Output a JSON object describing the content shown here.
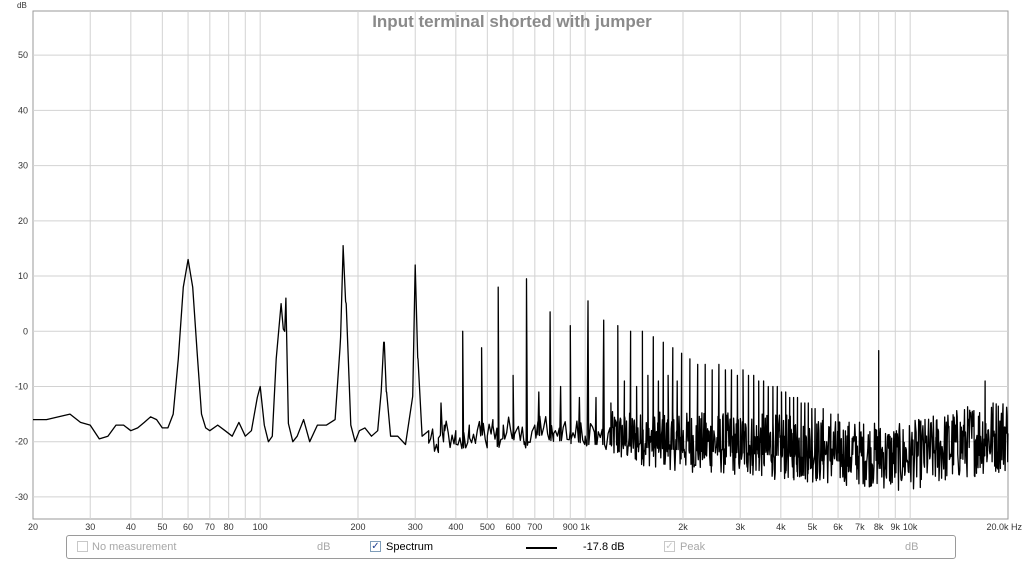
{
  "chart_data": {
    "type": "line",
    "title": "Input terminal shorted with jumper",
    "ylabel": "dB",
    "xlabel": "",
    "x_scale": "log",
    "xlim": [
      20,
      20000
    ],
    "ylim": [
      -34,
      58
    ],
    "x_ticks": [
      {
        "v": 20,
        "label": "20"
      },
      {
        "v": 30,
        "label": "30"
      },
      {
        "v": 40,
        "label": "40"
      },
      {
        "v": 50,
        "label": "50"
      },
      {
        "v": 60,
        "label": "60"
      },
      {
        "v": 70,
        "label": "70"
      },
      {
        "v": 80,
        "label": "80"
      },
      {
        "v": 100,
        "label": "100"
      },
      {
        "v": 200,
        "label": "200"
      },
      {
        "v": 300,
        "label": "300"
      },
      {
        "v": 400,
        "label": "400"
      },
      {
        "v": 500,
        "label": "500"
      },
      {
        "v": 600,
        "label": "600"
      },
      {
        "v": 700,
        "label": "700"
      },
      {
        "v": 900,
        "label": "900"
      },
      {
        "v": 1000,
        "label": "1k"
      },
      {
        "v": 2000,
        "label": "2k"
      },
      {
        "v": 3000,
        "label": "3k"
      },
      {
        "v": 4000,
        "label": "4k"
      },
      {
        "v": 5000,
        "label": "5k"
      },
      {
        "v": 6000,
        "label": "6k"
      },
      {
        "v": 7000,
        "label": "7k"
      },
      {
        "v": 8000,
        "label": "8k"
      },
      {
        "v": 9000,
        "label": "9k"
      },
      {
        "v": 10000,
        "label": "10k"
      },
      {
        "v": 20000,
        "label": "20.0k Hz"
      }
    ],
    "y_ticks": [
      50,
      40,
      30,
      20,
      10,
      0,
      -10,
      -20,
      -30
    ],
    "grid": true,
    "series": [
      {
        "name": "Spectrum",
        "color": "#000000",
        "points": [
          [
            20,
            -16
          ],
          [
            22,
            -16
          ],
          [
            24,
            -15.5
          ],
          [
            26,
            -15
          ],
          [
            28,
            -16.5
          ],
          [
            30,
            -17
          ],
          [
            32,
            -19.5
          ],
          [
            34,
            -19
          ],
          [
            36,
            -17
          ],
          [
            38,
            -17
          ],
          [
            40,
            -18
          ],
          [
            42,
            -17.5
          ],
          [
            44,
            -16.5
          ],
          [
            46,
            -15.5
          ],
          [
            48,
            -16
          ],
          [
            50,
            -17.5
          ],
          [
            52,
            -17.5
          ],
          [
            54,
            -15
          ],
          [
            56,
            -5
          ],
          [
            58,
            8
          ],
          [
            60,
            13
          ],
          [
            62,
            8
          ],
          [
            64,
            -4
          ],
          [
            66,
            -15
          ],
          [
            68,
            -17.5
          ],
          [
            70,
            -18
          ],
          [
            74,
            -17
          ],
          [
            78,
            -18
          ],
          [
            82,
            -19
          ],
          [
            86,
            -16.5
          ],
          [
            90,
            -19
          ],
          [
            94,
            -18
          ],
          [
            98,
            -12
          ],
          [
            100,
            -10
          ],
          [
            103,
            -17
          ],
          [
            106,
            -20
          ],
          [
            109,
            -19
          ],
          [
            112,
            -5
          ],
          [
            116,
            5
          ],
          [
            119,
            0
          ],
          [
            122,
            -15
          ],
          [
            126,
            -20
          ],
          [
            130,
            -19
          ],
          [
            136,
            -16
          ],
          [
            142,
            -20
          ],
          [
            150,
            -17
          ],
          [
            160,
            -17
          ],
          [
            170,
            -16
          ],
          [
            176,
            -3
          ],
          [
            180,
            15
          ],
          [
            184,
            5
          ],
          [
            190,
            -17
          ],
          [
            196,
            -20
          ],
          [
            202,
            -18
          ],
          [
            210,
            -17.5
          ],
          [
            220,
            -19
          ],
          [
            230,
            -18
          ],
          [
            238,
            -6
          ],
          [
            241,
            -2
          ],
          [
            245,
            -11
          ],
          [
            252,
            -19
          ],
          [
            265,
            -19
          ],
          [
            280,
            -20.5
          ],
          [
            295,
            -10
          ],
          [
            300,
            12
          ],
          [
            306,
            -5
          ],
          [
            315,
            -19
          ],
          [
            330,
            -18
          ],
          [
            350,
            -21
          ],
          [
            370,
            -18
          ],
          [
            390,
            -19
          ],
          [
            400,
            -18
          ],
          [
            420,
            -20
          ],
          [
            440,
            -17
          ],
          [
            460,
            -20
          ],
          [
            480,
            -17
          ],
          [
            500,
            -19
          ],
          [
            520,
            -16
          ],
          [
            540,
            -20
          ],
          [
            560,
            -17
          ],
          [
            600,
            -18
          ],
          [
            650,
            -20
          ],
          [
            700,
            -17
          ],
          [
            800,
            -18.5
          ],
          [
            900,
            -18
          ],
          [
            1000,
            -19
          ],
          [
            1200,
            -19
          ],
          [
            1500,
            -19.5
          ],
          [
            2000,
            -20
          ],
          [
            3000,
            -20.5
          ],
          [
            4000,
            -21
          ],
          [
            5000,
            -21.5
          ],
          [
            6000,
            -22
          ],
          [
            7000,
            -22
          ],
          [
            8000,
            -22.5
          ],
          [
            9000,
            -23
          ],
          [
            10000,
            -22.5
          ],
          [
            12000,
            -21.5
          ],
          [
            14000,
            -20.5
          ],
          [
            16000,
            -19.5
          ],
          [
            18000,
            -19
          ],
          [
            20000,
            -18.5
          ]
        ],
        "peaks": [
          [
            120,
            6
          ],
          [
            180,
            15.5
          ],
          [
            240,
            -2
          ],
          [
            300,
            12
          ],
          [
            360,
            -13
          ],
          [
            420,
            0
          ],
          [
            480,
            -3
          ],
          [
            540,
            8
          ],
          [
            600,
            -8
          ],
          [
            660,
            9.5
          ],
          [
            720,
            -11
          ],
          [
            780,
            3.5
          ],
          [
            840,
            -10
          ],
          [
            900,
            1
          ],
          [
            960,
            -12
          ],
          [
            1020,
            5.5
          ],
          [
            1080,
            -12
          ],
          [
            1140,
            2
          ],
          [
            1200,
            -13
          ],
          [
            1260,
            1
          ],
          [
            1320,
            -9
          ],
          [
            1380,
            0
          ],
          [
            1440,
            -10
          ],
          [
            1500,
            0
          ],
          [
            1560,
            -8
          ],
          [
            1620,
            -1
          ],
          [
            1680,
            -9
          ],
          [
            1740,
            -2
          ],
          [
            1800,
            -8
          ],
          [
            1860,
            -3
          ],
          [
            1920,
            -9
          ],
          [
            1980,
            -4
          ],
          [
            2100,
            -5
          ],
          [
            2220,
            -6
          ],
          [
            2340,
            -6
          ],
          [
            2460,
            -7
          ],
          [
            2580,
            -6
          ],
          [
            2700,
            -7
          ],
          [
            2820,
            -7
          ],
          [
            2940,
            -8
          ],
          [
            3060,
            -7
          ],
          [
            3180,
            -8
          ],
          [
            3300,
            -8
          ],
          [
            3420,
            -9
          ],
          [
            3540,
            -9
          ],
          [
            3660,
            -10
          ],
          [
            3780,
            -10
          ],
          [
            3900,
            -10
          ],
          [
            4020,
            -11
          ],
          [
            4140,
            -11
          ],
          [
            4260,
            -12
          ],
          [
            4380,
            -12
          ],
          [
            4500,
            -12
          ],
          [
            4620,
            -13
          ],
          [
            4740,
            -13
          ],
          [
            4860,
            -13
          ],
          [
            4980,
            -14
          ],
          [
            5100,
            -14
          ],
          [
            5400,
            -14
          ],
          [
            5700,
            -15
          ],
          [
            6000,
            -15
          ],
          [
            8000,
            -3.5
          ],
          [
            17000,
            -9
          ]
        ],
        "noise_band": [
          [
            1200,
            -19,
            4.5
          ],
          [
            2000,
            -20,
            5.5
          ],
          [
            4000,
            -21,
            6
          ],
          [
            8000,
            -23,
            6
          ],
          [
            12000,
            -22,
            6.5
          ],
          [
            20000,
            -19,
            7
          ]
        ]
      }
    ]
  },
  "legend": {
    "no_measurement": {
      "label": "No measurement",
      "unit": "dB",
      "checked": false
    },
    "spectrum": {
      "label": "Spectrum",
      "value": "-17.8 dB",
      "checked": true,
      "check_mark": "✓"
    },
    "peak": {
      "label": "Peak",
      "unit": "dB",
      "checked": true,
      "check_mark": "✓"
    }
  }
}
